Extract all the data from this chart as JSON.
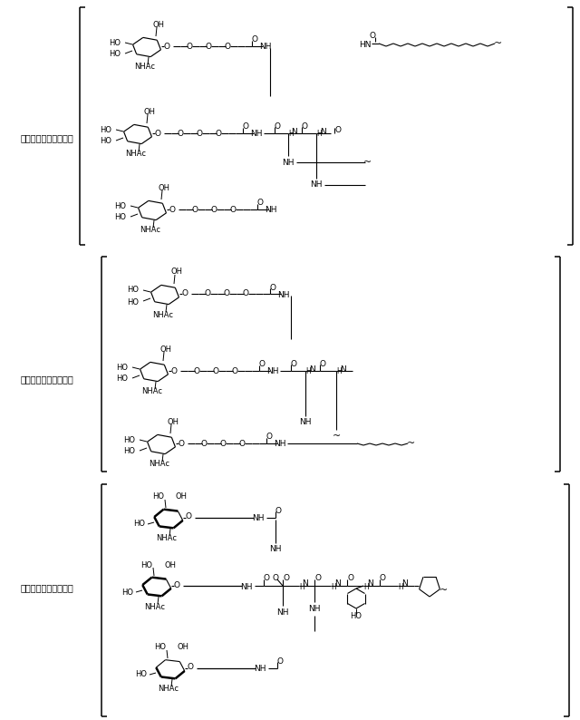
{
  "background_color": "#ffffff",
  "line_color": "#000000",
  "text_color": "#000000",
  "fig_width": 6.4,
  "fig_height": 7.94,
  "dpi": 100,
  "labels": {
    "conj1": "コンジュゲート１ａ＝",
    "conj2": "コンジュゲート２ａ＝",
    "conj3": "コンジュゲート３ａ＝"
  }
}
